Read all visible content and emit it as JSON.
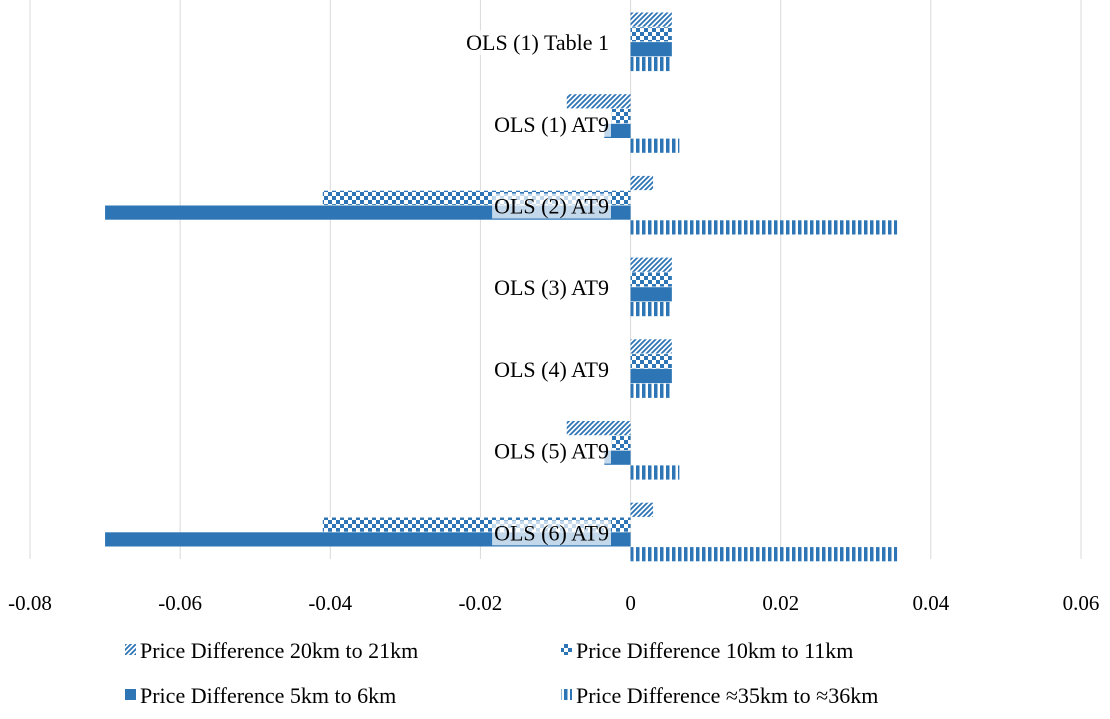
{
  "chart_data": {
    "type": "bar",
    "orientation": "horizontal",
    "xlim": [
      -0.08,
      0.06
    ],
    "x_ticks": [
      "-0.08",
      "-0.06",
      "-0.04",
      "-0.02",
      "0",
      "0.02",
      "0.04",
      "0.06"
    ],
    "x_tick_values": [
      -0.08,
      -0.06,
      -0.04,
      -0.02,
      0,
      0.02,
      0.04,
      0.06
    ],
    "grid": "vertical",
    "legend_position": "bottom",
    "categories": [
      "OLS (1) Table 1",
      "OLS (1) AT9",
      "OLS (2) AT9",
      "OLS (3) AT9",
      "OLS (4) AT9",
      "OLS (5) AT9",
      "OLS (6) AT9"
    ],
    "series": [
      {
        "name": "Price Difference 20km to 21km",
        "color": "#2e75b6",
        "pattern": "diagonal-stripes",
        "values": [
          0.0055,
          -0.0085,
          0.003,
          0.0055,
          0.0055,
          -0.0085,
          0.003
        ]
      },
      {
        "name": "Price Difference 10km to 11km",
        "color": "#2e75b6",
        "pattern": "checker",
        "values": [
          0.0055,
          -0.0025,
          -0.041,
          0.0055,
          0.0055,
          -0.0025,
          -0.041
        ]
      },
      {
        "name": "Price Difference 5km to 6km",
        "color": "#2e75b6",
        "pattern": "solid",
        "values": [
          0.0055,
          -0.0035,
          -0.07,
          0.0055,
          0.0055,
          -0.0035,
          -0.07
        ]
      },
      {
        "name": "Price Difference ≈35km to ≈36km",
        "color": "#2e75b6",
        "pattern": "vertical-stripes",
        "values": [
          0.0055,
          0.0065,
          0.0355,
          0.0055,
          0.0055,
          0.0065,
          0.0355
        ]
      }
    ]
  }
}
